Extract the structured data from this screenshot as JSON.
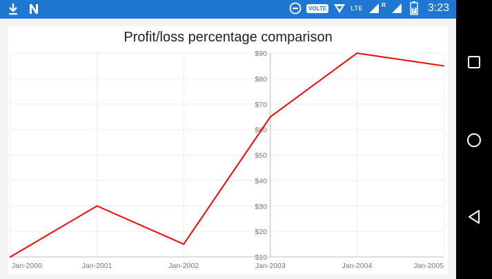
{
  "status_bar": {
    "time": "3:23",
    "volte_label": "VOLTE",
    "lte_label": "LTE",
    "roaming_label": "R",
    "icons": [
      "download-icon",
      "n-logo-icon",
      "dnd-icon",
      "volte-icon",
      "hotspot-icon",
      "signal-icon",
      "battery-icon"
    ]
  },
  "navigation_bar": {
    "buttons": [
      "recents-button",
      "home-button",
      "back-button"
    ]
  },
  "colors": {
    "status_bar": "#1e78d2",
    "series_line": "#ff0000"
  },
  "chart_data": {
    "type": "line",
    "title": "Profit/loss percentage comparison",
    "xlabel": "",
    "ylabel": "",
    "categories": [
      "Jan-2000",
      "Jan-2001",
      "Jan-2002",
      "Jan-2003",
      "Jan-2004",
      "Jan-2005"
    ],
    "series": [
      {
        "values": [
          10,
          30,
          15,
          65,
          90,
          85
        ]
      }
    ],
    "y_ticks": [
      "$10",
      "$20",
      "$30",
      "$40",
      "$50",
      "$60",
      "$70",
      "$80",
      "$90"
    ],
    "ylim": [
      10,
      90
    ],
    "y_axis_crosses_at": "Jan-2003",
    "grid": true,
    "legend": "none"
  }
}
